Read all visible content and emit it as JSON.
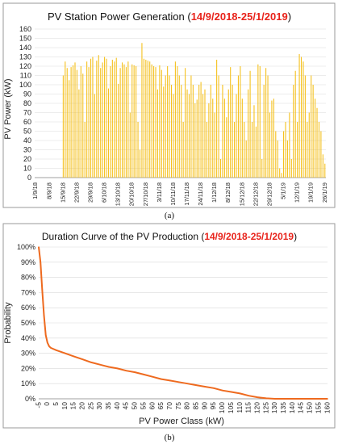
{
  "colors": {
    "bar": "#F5C11E",
    "line": "#EE6A1F",
    "title_black": "#111111",
    "title_red": "#E8231B",
    "grid": "#D9D9D9",
    "frame": "#999999"
  },
  "charts": [
    {
      "type": "bar",
      "title_main": "PV Station Power Generation (",
      "title_highlight": "14/9/2018-25/1/2019",
      "title_tail": ")",
      "ylabel": "PV Power (kW)",
      "xlabel": "",
      "ylim": [
        0,
        160
      ],
      "yticks": [
        "0",
        "10",
        "20",
        "30",
        "40",
        "50",
        "60",
        "70",
        "80",
        "90",
        "100",
        "110",
        "120",
        "130",
        "140",
        "150",
        "160"
      ],
      "xticks": [
        "1/9/18",
        "8/9/18",
        "15/9/18",
        "22/9/18",
        "29/9/18",
        "6/10/18",
        "13/10/18",
        "20/10/18",
        "27/10/18",
        "3/11/18",
        "10/11/18",
        "17/11/18",
        "24/11/18",
        "1/12/18",
        "8/12/18",
        "15/12/18",
        "22/12/18",
        "29/12/18",
        "5/1/19",
        "12/1/19",
        "19/1/19",
        "26/1/19"
      ],
      "n_days": 148,
      "first_index": 14,
      "last_index": 146,
      "panel_label": "(a)",
      "values": [
        0,
        0,
        0,
        0,
        0,
        0,
        0,
        0,
        0,
        0,
        0,
        0,
        0,
        0,
        110,
        125,
        118,
        105,
        119,
        121,
        124,
        116,
        95,
        120,
        112,
        60,
        125,
        119,
        128,
        130,
        90,
        126,
        132,
        118,
        124,
        130,
        128,
        96,
        120,
        127,
        125,
        129,
        101,
        118,
        124,
        122,
        119,
        125,
        70,
        122,
        121,
        120,
        60,
        30,
        145,
        128,
        127,
        126,
        125,
        122,
        120,
        119,
        95,
        121,
        116,
        98,
        110,
        120,
        110,
        100,
        90,
        125,
        120,
        110,
        100,
        60,
        118,
        95,
        90,
        110,
        100,
        80,
        84,
        100,
        103,
        90,
        95,
        60,
        80,
        100,
        85,
        70,
        127,
        110,
        20,
        100,
        85,
        65,
        95,
        119,
        100,
        60,
        90,
        110,
        120,
        85,
        60,
        40,
        95,
        115,
        60,
        78,
        55,
        122,
        120,
        20,
        100,
        118,
        110,
        70,
        83,
        85,
        50,
        40,
        10,
        5,
        50,
        60,
        40,
        70,
        20,
        100,
        115,
        60,
        133,
        130,
        125,
        110,
        60,
        70,
        110,
        100,
        85,
        75,
        60,
        50,
        25,
        15
      ]
    },
    {
      "type": "line",
      "title_main": "Duration Curve of the PV Production (",
      "title_highlight": "14/9/2018-25/1/2019",
      "title_tail": ")",
      "xlabel": "PV Power Class (kW)",
      "ylabel": "Probability",
      "xlim": [
        -5,
        160
      ],
      "ylim": [
        0,
        100
      ],
      "yticks": [
        "0%",
        "10%",
        "20%",
        "30%",
        "40%",
        "50%",
        "60%",
        "70%",
        "80%",
        "90%",
        "100%"
      ],
      "xticks": [
        "-5",
        "0",
        "5",
        "10",
        "15",
        "20",
        "25",
        "30",
        "35",
        "40",
        "45",
        "50",
        "55",
        "60",
        "65",
        "70",
        "75",
        "80",
        "85",
        "90",
        "95",
        "100",
        "105",
        "110",
        "115",
        "120",
        "125",
        "130",
        "135",
        "140",
        "145",
        "150",
        "155",
        "160"
      ],
      "panel_label": "(b)",
      "x": [
        -5,
        -4,
        -3,
        -2,
        -1,
        0,
        1,
        2,
        5,
        10,
        15,
        20,
        25,
        30,
        35,
        40,
        45,
        50,
        55,
        60,
        65,
        70,
        75,
        80,
        85,
        90,
        95,
        100,
        105,
        110,
        115,
        120,
        125,
        130,
        135,
        140,
        145,
        150,
        155,
        160
      ],
      "y": [
        100,
        90,
        72,
        55,
        42,
        37,
        34.5,
        33.5,
        32,
        30,
        28,
        26,
        24,
        22.5,
        21,
        20,
        18.5,
        17.5,
        16,
        14.5,
        13,
        12,
        11,
        10,
        9,
        8,
        7,
        5.5,
        4.5,
        3.5,
        2,
        1,
        0.3,
        0,
        0,
        0,
        0,
        0,
        0,
        0
      ]
    }
  ]
}
